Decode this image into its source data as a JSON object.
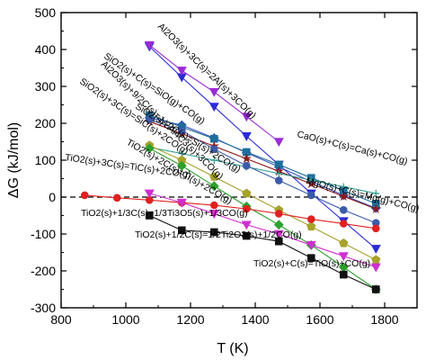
{
  "chart_data": {
    "type": "line",
    "xlabel": "T (K)",
    "ylabel": "ΔG (kJ/mol)",
    "xlim": [
      800,
      1900
    ],
    "ylim": [
      -300,
      500
    ],
    "xticks": [
      800,
      1000,
      1200,
      1400,
      1600,
      1800
    ],
    "yticks": [
      -300,
      -200,
      -100,
      0,
      100,
      200,
      300,
      400,
      500
    ],
    "zero_line": "dashed",
    "series": [
      {
        "name": "Al2O3(s)+9/2C(s)=1/2Al4C3(s)+3CO(g)",
        "color": "#2b2bd6",
        "marker": "triangle-down",
        "x": [
          1073,
          1173,
          1273,
          1373,
          1473,
          1573,
          1673,
          1773
        ],
        "y": [
          408,
          325,
          245,
          165,
          88,
          10,
          -65,
          -140
        ]
      },
      {
        "name": "Al2O3(s)+3C(s)=2Al(s)+3CO(g)",
        "color": "#9a2bd6",
        "marker": "triangle-down",
        "x": [
          1073,
          1173,
          1273,
          1373,
          1473
        ],
        "y": [
          412,
          343,
          285,
          218,
          150
        ]
      },
      {
        "name": "SiO2(s)+C(s)=SiO(g)+CO(g)",
        "color": "#3a4fbf",
        "marker": "diamond",
        "x": [
          1073,
          1173,
          1273,
          1373,
          1473,
          1573,
          1673,
          1773
        ],
        "y": [
          215,
          195,
          160,
          120,
          82,
          42,
          5,
          -30
        ]
      },
      {
        "name": "SiO2(s)+3C(s)=SiC(s)+2CO(g)",
        "color": "#1e6e9a",
        "marker": "square",
        "x": [
          1073,
          1173,
          1273,
          1373,
          1473,
          1573,
          1673,
          1773
        ],
        "y": [
          222,
          190,
          158,
          122,
          88,
          52,
          18,
          -18
        ]
      },
      {
        "name": "SiO2(s)+2C(s)=Si(s)+2CO(g)",
        "color": "#8b1a1a",
        "marker": "star",
        "x": [
          1073,
          1173,
          1273,
          1373,
          1473,
          1573,
          1673,
          1773
        ],
        "y": [
          205,
          172,
          138,
          104,
          70,
          36,
          2,
          -32
        ]
      },
      {
        "name": "CaO(s)+C(s)=Ca(s)+CO(g)",
        "color": "#2a9d8f",
        "marker": "plus",
        "x": [
          1073,
          1173,
          1273,
          1373,
          1473,
          1573,
          1673,
          1773
        ],
        "y": [
          135,
          118,
          100,
          82,
          64,
          46,
          28,
          10
        ]
      },
      {
        "name": "MgO(s)+C(s)=Mg(g)+CO(g)",
        "color": "#3b5ba9",
        "marker": "circle",
        "x": [
          1073,
          1173,
          1273,
          1373,
          1473,
          1573,
          1673,
          1773
        ],
        "y": [
          210,
          180,
          130,
          85,
          45,
          5,
          -35,
          -70
        ]
      },
      {
        "name": "TiO2(s)+2C(s)=Ti(s)+2CO(g)",
        "color": "#a6a22a",
        "marker": "pentagon",
        "x": [
          1073,
          1173,
          1273,
          1373,
          1473,
          1573,
          1673,
          1773
        ],
        "y": [
          140,
          100,
          55,
          10,
          -35,
          -80,
          -125,
          -170
        ]
      },
      {
        "name": "TiO2(s)+3C(s)=TiC(s)+2CO(g)",
        "color": "#2ca02c",
        "marker": "diamond",
        "x": [
          1073,
          1173,
          1273,
          1373,
          1473,
          1573,
          1673,
          1773
        ],
        "y": [
          132,
          85,
          30,
          -25,
          -75,
          -130,
          -190,
          -250
        ]
      },
      {
        "name": "TiO2(s)+1/3C(s)=1/3Ti3O5(s)+1/3CO(g)",
        "color": "#e02020",
        "marker": "circle",
        "x": [
          873,
          973,
          1073,
          1173,
          1273,
          1373,
          1473,
          1573,
          1673,
          1773
        ],
        "y": [
          5,
          -2,
          -8,
          -15,
          -22,
          -32,
          -45,
          -60,
          -72,
          -85
        ]
      },
      {
        "name": "TiO2(s)+1/2C(s)=1/2Ti2O3(s)+1/2CO(g)",
        "color": "#d02fd0",
        "marker": "triangle-down",
        "x": [
          1073,
          1173,
          1273,
          1373,
          1473,
          1573,
          1673,
          1773
        ],
        "y": [
          10,
          -15,
          -45,
          -75,
          -100,
          -130,
          -160,
          -190
        ]
      },
      {
        "name": "TiO2(s)+C(s)=TiO(s)+CO(g)",
        "color": "#111111",
        "marker": "square",
        "x": [
          1073,
          1173,
          1273,
          1373,
          1473,
          1573,
          1673,
          1773
        ],
        "y": [
          -50,
          -90,
          -95,
          -105,
          -120,
          -165,
          -210,
          -250
        ]
      }
    ],
    "annotations": [
      {
        "text": "Al2O3(s)+9/2C(s)=1/2Al4C3(s)+3CO(g)",
        "series": 0
      },
      {
        "text": "Al2O3(s)+3C(s)=2Al(s)+3CO(g)",
        "series": 1
      },
      {
        "text": "SiO2(s)+C(s)=SiO(g)+CO(g)",
        "series": 2
      },
      {
        "text": "SiO2(s)+3C(s)=SiC(s)+2CO(g)",
        "series": 3
      },
      {
        "text": "SiO2(s)+2C(s)=Si(s)+2CO(g)",
        "series": 4
      },
      {
        "text": "CaO(s)+C(s)=Ca(s)+CO(g)",
        "series": 5
      },
      {
        "text": "MgO(s)+C(s)=Mg(g)+CO(g)",
        "series": 6
      },
      {
        "text": "TiO2(s)+2C(s)=Ti(s)+2CO(g)",
        "series": 7
      },
      {
        "text": "TiO2(s)+3C(s)=TiC(s)+2CO(g)",
        "series": 8
      },
      {
        "text": "TiO2(s)+1/3C(s)=1/3Ti3O5(s)+1/3CO(g)",
        "series": 9
      },
      {
        "text": "TiO2(s)+1/2C(s)=1/2Ti2O3(s)+1/2CO(g)",
        "series": 10
      },
      {
        "text": "TiO2(s)+C(s)=TiO(s)+CO(g)",
        "series": 11
      }
    ]
  }
}
